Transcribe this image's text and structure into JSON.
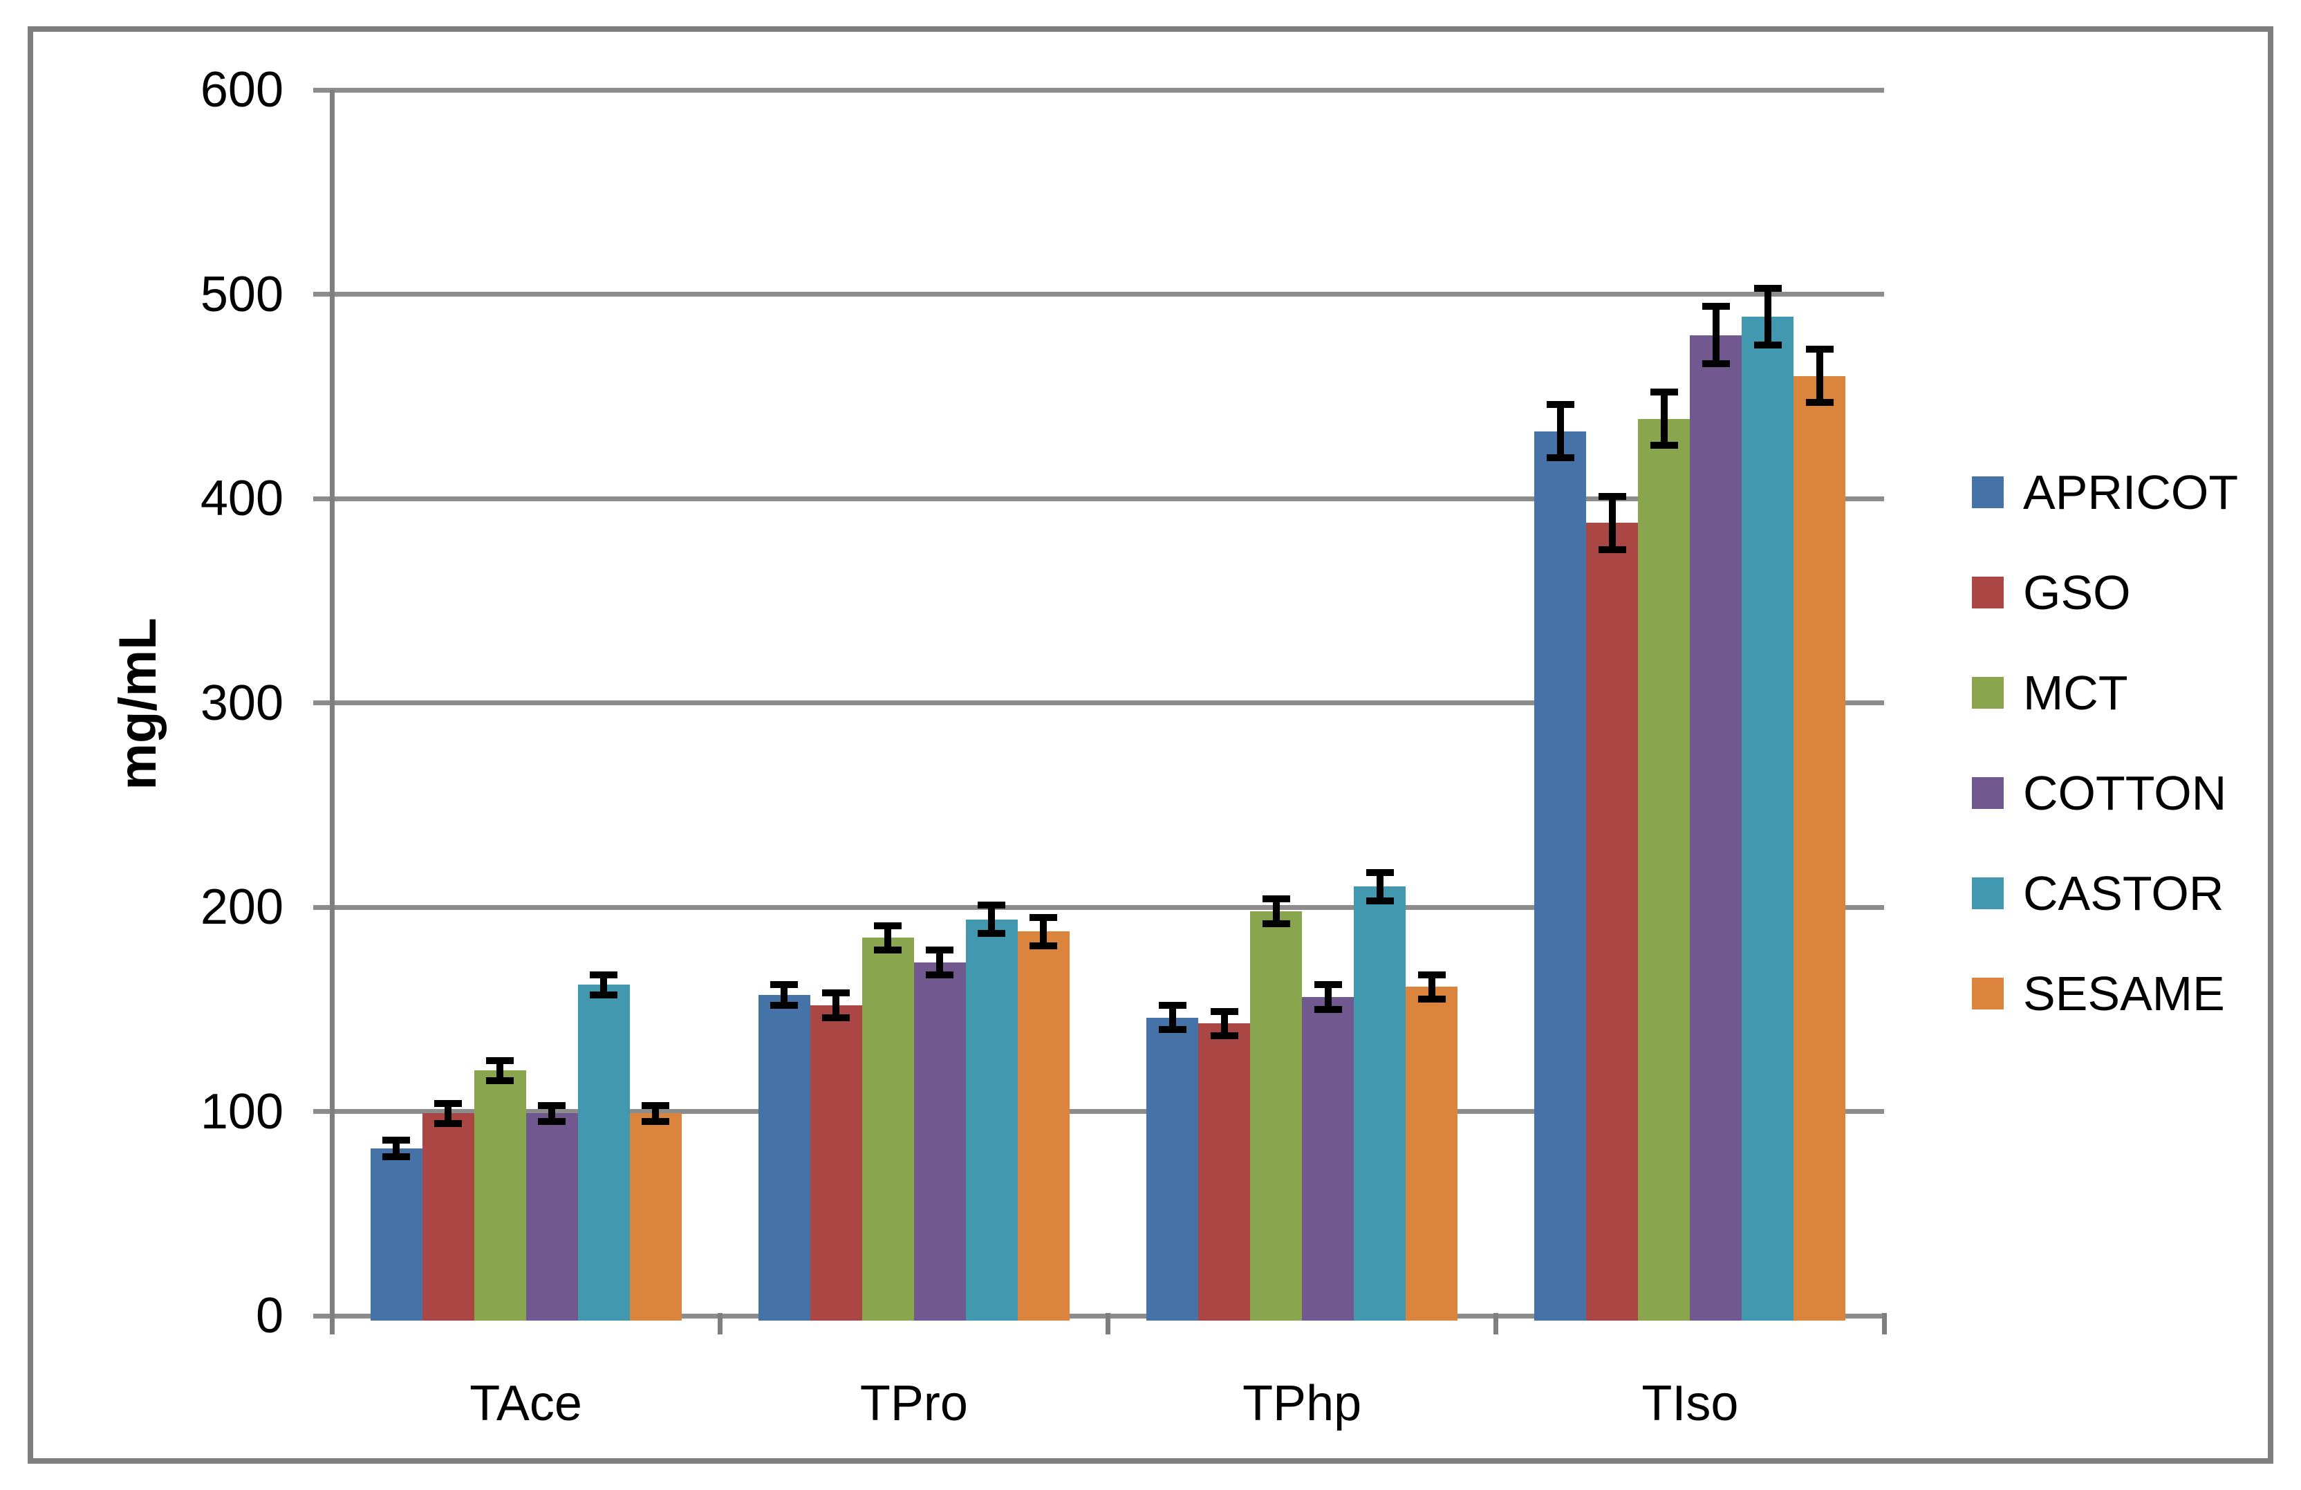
{
  "chart_data": {
    "type": "bar",
    "title": "",
    "xlabel": "",
    "ylabel": "mg/mL",
    "ylim": [
      0,
      600
    ],
    "ytick_step": 100,
    "ytick_labels": [
      "0",
      "100",
      "200",
      "300",
      "400",
      "500",
      "600"
    ],
    "grid": true,
    "legend_position": "right",
    "error_bars": true,
    "categories": [
      "TAce",
      "TPro",
      "TPhp",
      "TIso"
    ],
    "series": [
      {
        "name": "APRICOT",
        "color": "#4572A7",
        "values": [
          82,
          157,
          146,
          433
        ],
        "errors": [
          4,
          5,
          6,
          13
        ]
      },
      {
        "name": "GSO",
        "color": "#AA4643",
        "values": [
          99,
          152,
          143,
          388
        ],
        "errors": [
          5,
          6,
          6,
          13
        ]
      },
      {
        "name": "MCT",
        "color": "#89A54E",
        "values": [
          120,
          185,
          198,
          439
        ],
        "errors": [
          5,
          6,
          6,
          13
        ]
      },
      {
        "name": "COTTON",
        "color": "#71588F",
        "values": [
          99,
          173,
          156,
          480
        ],
        "errors": [
          4,
          6,
          6,
          14
        ]
      },
      {
        "name": "CASTOR",
        "color": "#4198AF",
        "values": [
          162,
          194,
          210,
          489
        ],
        "errors": [
          5,
          7,
          7,
          14
        ]
      },
      {
        "name": "SESAME",
        "color": "#DB843D",
        "values": [
          99,
          188,
          161,
          460
        ],
        "errors": [
          4,
          7,
          6,
          13
        ]
      }
    ]
  }
}
